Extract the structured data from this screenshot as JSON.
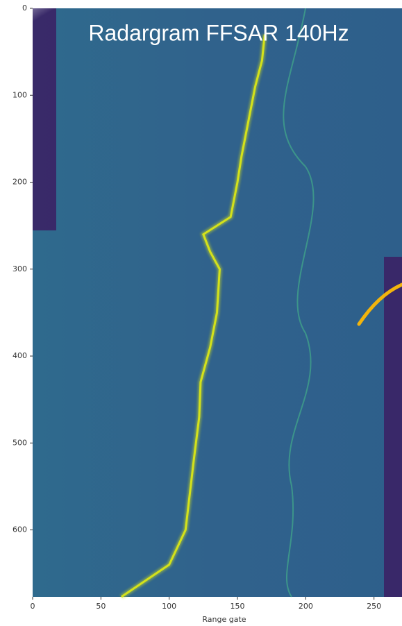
{
  "chart_data": {
    "type": "radargram",
    "title": "Radargram FFSAR 140Hz",
    "x_label": "Range gate",
    "xlim": [
      0,
      270
    ],
    "ylim": [
      0,
      677
    ],
    "y_inverted": true,
    "xticks": [
      0,
      50,
      100,
      150,
      200,
      250
    ],
    "yticks": [
      0,
      100,
      200,
      300,
      400,
      500,
      600
    ],
    "trace": {
      "color": "#d4e21a",
      "x": [
        170,
        168,
        163,
        158,
        153,
        150,
        145,
        125,
        130,
        137,
        135,
        130,
        123,
        122,
        118,
        115,
        112,
        100,
        65
      ],
      "y": [
        30,
        60,
        90,
        130,
        170,
        200,
        240,
        260,
        280,
        300,
        350,
        390,
        430,
        470,
        520,
        560,
        600,
        640,
        677
      ]
    }
  }
}
